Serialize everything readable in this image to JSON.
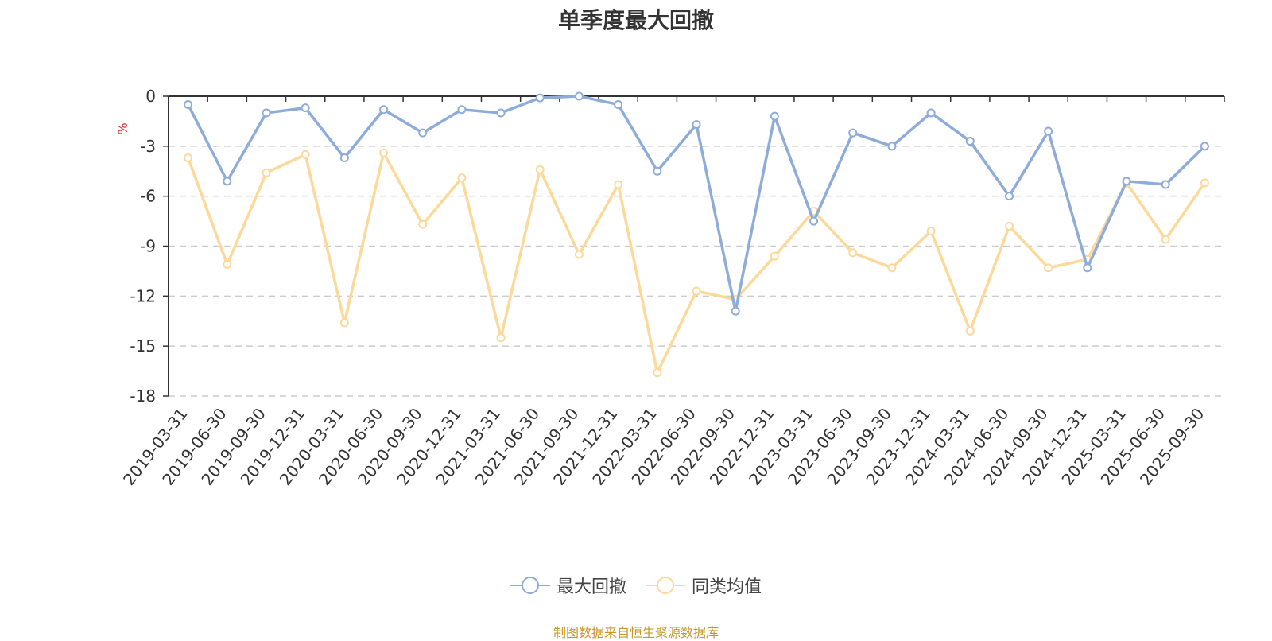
{
  "chart_data": {
    "type": "line",
    "title": "单季度最大回撤",
    "ylabel": "%",
    "ylim": [
      -18,
      0
    ],
    "yticks": [
      0,
      -3,
      -6,
      -9,
      -12,
      -15,
      -18
    ],
    "grid": true,
    "legend_position": "bottom",
    "categories": [
      "2019-03-31",
      "2019-06-30",
      "2019-09-30",
      "2019-12-31",
      "2020-03-31",
      "2020-06-30",
      "2020-09-30",
      "2020-12-31",
      "2021-03-31",
      "2021-06-30",
      "2021-09-30",
      "2021-12-31",
      "2022-03-31",
      "2022-06-30",
      "2022-09-30",
      "2022-12-31",
      "2023-03-31",
      "2023-06-30",
      "2023-09-30",
      "2023-12-31",
      "2024-03-31",
      "2024-06-30",
      "2024-09-30",
      "2024-12-31",
      "2025-03-31",
      "2025-06-30",
      "2025-09-30"
    ],
    "series": [
      {
        "name": "最大回撤",
        "color": "#8eacd9",
        "values": [
          -0.5,
          -5.1,
          -1.0,
          -0.7,
          -3.7,
          -0.8,
          -2.2,
          -0.8,
          -1.0,
          -0.1,
          0.0,
          -0.5,
          -4.5,
          -1.7,
          -12.9,
          -1.2,
          -7.5,
          -2.2,
          -3.0,
          -1.0,
          -2.7,
          -6.0,
          -2.1,
          -10.3,
          -5.1,
          -5.3,
          -3.0
        ]
      },
      {
        "name": "同类均值",
        "color": "#fcd998",
        "values": [
          -3.7,
          -10.1,
          -4.6,
          -3.5,
          -13.6,
          -3.4,
          -7.7,
          -4.9,
          -14.5,
          -4.4,
          -9.5,
          -5.3,
          -16.6,
          -11.7,
          -12.2,
          -9.6,
          -6.9,
          -9.4,
          -10.3,
          -8.1,
          -14.1,
          -7.8,
          -10.3,
          -9.8,
          -5.2,
          -8.6,
          -5.2
        ]
      }
    ]
  },
  "source_note": "制图数据来自恒生聚源数据库"
}
